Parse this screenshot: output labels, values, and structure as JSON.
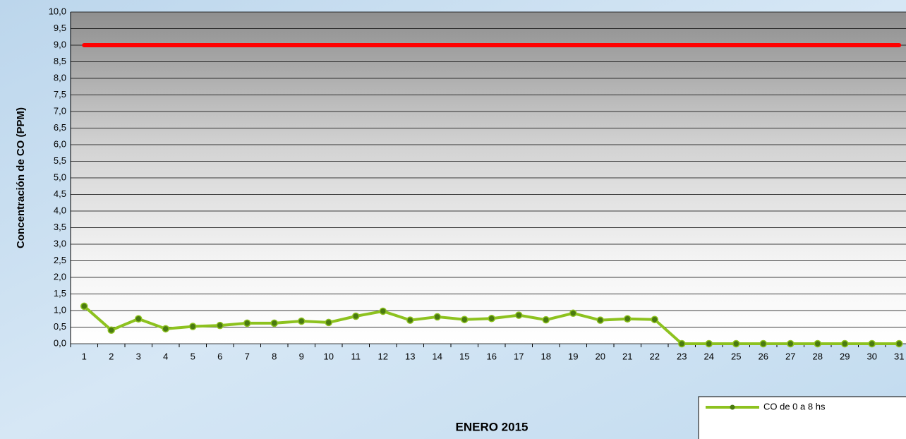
{
  "chart_data": {
    "type": "line",
    "y_label": "Concentración de CO (PPM)",
    "x_label": "ENERO 2015",
    "categories": [
      "1",
      "2",
      "3",
      "4",
      "5",
      "6",
      "7",
      "8",
      "9",
      "10",
      "11",
      "12",
      "13",
      "14",
      "15",
      "16",
      "17",
      "18",
      "19",
      "20",
      "21",
      "22",
      "23",
      "24",
      "25",
      "26",
      "27",
      "28",
      "29",
      "30",
      "31"
    ],
    "series": [
      {
        "name": "CO de 0 a 8 hs",
        "color": "#8dc21f",
        "values": [
          1.13,
          0.41,
          0.75,
          0.45,
          0.52,
          0.55,
          0.62,
          0.62,
          0.68,
          0.64,
          0.83,
          0.98,
          0.71,
          0.81,
          0.73,
          0.76,
          0.86,
          0.72,
          0.92,
          0.71,
          0.75,
          0.73,
          0,
          0,
          0,
          0,
          0,
          0,
          0,
          0,
          0
        ]
      }
    ],
    "limit": {
      "value": 9,
      "color": "#ff0000"
    },
    "ylim": [
      0,
      10
    ],
    "yticks": [
      {
        "value": 0,
        "label": "0,0"
      },
      {
        "value": 0.5,
        "label": "0,5"
      },
      {
        "value": 1,
        "label": "1,0"
      },
      {
        "value": 1.5,
        "label": "1,5"
      },
      {
        "value": 2,
        "label": "2,0"
      },
      {
        "value": 2.5,
        "label": "2,5"
      },
      {
        "value": 3,
        "label": "3,0"
      },
      {
        "value": 3.5,
        "label": "3,5"
      },
      {
        "value": 4,
        "label": "4,0"
      },
      {
        "value": 4.5,
        "label": "4,5"
      },
      {
        "value": 5,
        "label": "5,0"
      },
      {
        "value": 5.5,
        "label": "5,5"
      },
      {
        "value": 6,
        "label": "6,0"
      },
      {
        "value": 6.5,
        "label": "6,5"
      },
      {
        "value": 7,
        "label": "7,0"
      },
      {
        "value": 7.5,
        "label": "7,5"
      },
      {
        "value": 8,
        "label": "8,0"
      },
      {
        "value": 8.5,
        "label": "8,5"
      },
      {
        "value": 9,
        "label": "9,0"
      },
      {
        "value": 9.5,
        "label": "9,5"
      },
      {
        "value": 10,
        "label": "10,0"
      }
    ],
    "grid": true,
    "legend": "bottom-right"
  }
}
